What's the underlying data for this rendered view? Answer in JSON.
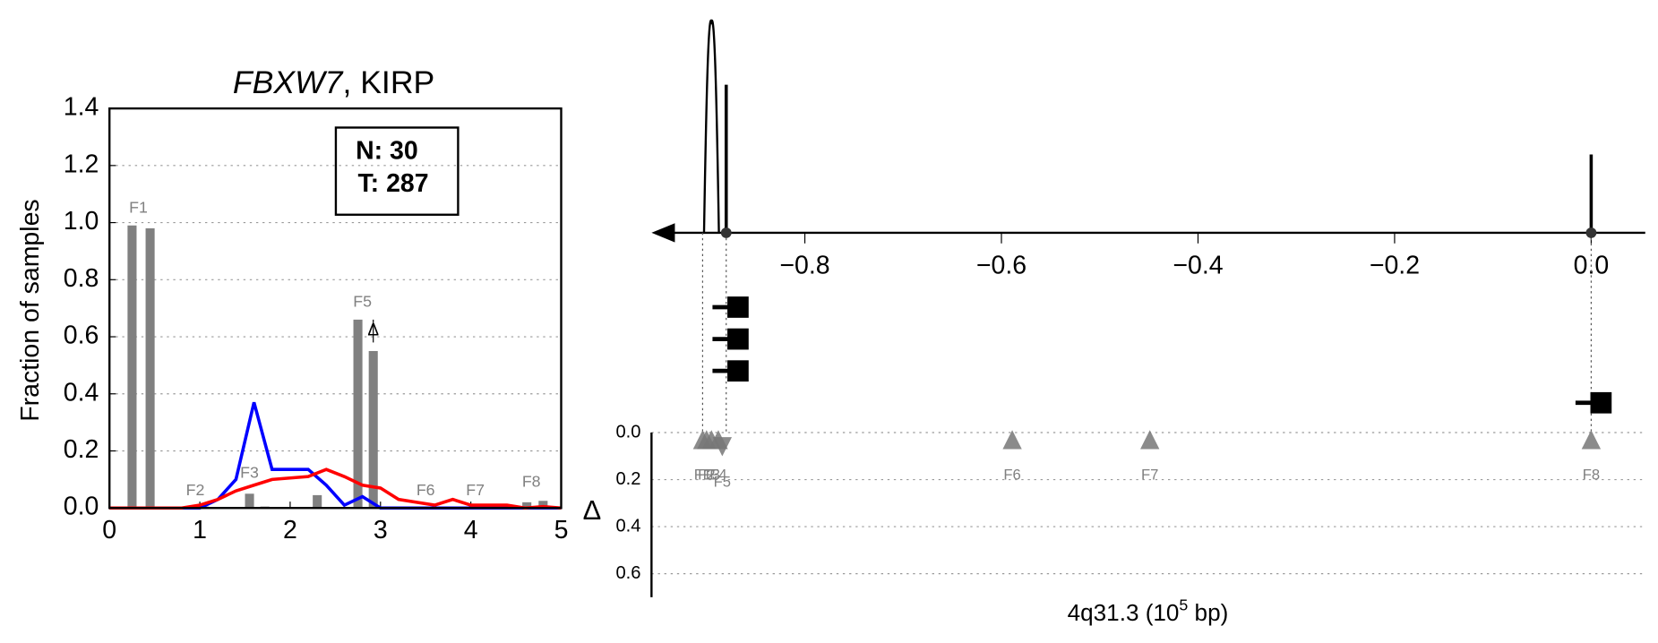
{
  "chart_data": [
    {
      "type": "histogram-lines",
      "title_parts": [
        "FBXW7",
        ", KIRP"
      ],
      "ylabel": "Fraction of samples",
      "xlim": [
        0,
        5
      ],
      "ylim": [
        0,
        1.4
      ],
      "xticks": [
        0,
        1,
        2,
        3,
        4,
        5
      ],
      "yticks": [
        {
          "value": 0,
          "label": "0.0"
        },
        {
          "value": 0.2,
          "label": "0.2"
        },
        {
          "value": 0.4,
          "label": "0.4"
        },
        {
          "value": 0.6,
          "label": "0.6"
        },
        {
          "value": 0.8,
          "label": "0.8"
        },
        {
          "value": 1,
          "label": "1.0"
        },
        {
          "value": 1.2,
          "label": "1.2"
        },
        {
          "value": 1.4,
          "label": "1.4"
        }
      ],
      "grid": true,
      "bars": {
        "color": "#808080",
        "x": [
          0.25,
          0.45,
          1.05,
          1.55,
          1.72,
          2.3,
          2.75,
          2.92,
          3.55,
          4.62,
          4.8
        ],
        "values": [
          0.99,
          0.98,
          0.005,
          0.05,
          0.005,
          0.045,
          0.66,
          0.55,
          0.005,
          0.02,
          0.025
        ]
      },
      "x": [
        0,
        0.2,
        0.4,
        0.6,
        0.8,
        1,
        1.2,
        1.4,
        1.6,
        1.8,
        2,
        2.2,
        2.4,
        2.6,
        2.8,
        3,
        3.2,
        3.4,
        3.6,
        3.8,
        4,
        4.2,
        4.4,
        4.6,
        4.8,
        5
      ],
      "series": [
        {
          "color": "#0000ff",
          "values": [
            0,
            0,
            0,
            0,
            0,
            0,
            0.03,
            0.1,
            0.37,
            0.135,
            0.135,
            0.135,
            0.08,
            0.01,
            0.04,
            0,
            0,
            0,
            0,
            0,
            0,
            0,
            0,
            0,
            0,
            0
          ]
        },
        {
          "color": "#ff0000",
          "values": [
            0,
            0,
            0,
            0,
            0,
            0.01,
            0.03,
            0.06,
            0.08,
            0.1,
            0.105,
            0.11,
            0.135,
            0.11,
            0.08,
            0.07,
            0.03,
            0.02,
            0.01,
            0.03,
            0.01,
            0.01,
            0.01,
            0,
            0.005,
            0
          ]
        }
      ],
      "features": {
        "labels": [
          "F1",
          "F2",
          "F3",
          "F5",
          "F6",
          "F7",
          "F8"
        ],
        "x": [
          0.32,
          0.95,
          1.55,
          2.8,
          3.5,
          4.05,
          4.67
        ],
        "values": [
          1.05,
          0.06,
          0.12,
          0.72,
          0.06,
          0.06,
          0.09
        ]
      },
      "delta_marker": {
        "label": "Δ",
        "x": 2.92,
        "values": [
          0.62
        ],
        "error": [
          0.04
        ]
      },
      "counts": [
        "N: 30",
        "T: 287"
      ]
    },
    {
      "type": "genome-track",
      "xlabel_parts": [
        "4q31.3 (10",
        "5",
        " bp)"
      ],
      "xlim": [
        -0.956,
        0.055
      ],
      "xticks": [
        {
          "value": -0.8,
          "label": "−0.8"
        },
        {
          "value": -0.6,
          "label": "−0.6"
        },
        {
          "value": -0.4,
          "label": "−0.4"
        },
        {
          "value": -0.2,
          "label": "−0.2"
        },
        {
          "value": 0,
          "label": "0.0"
        }
      ],
      "peaks": {
        "x": [
          -0.895,
          -0.88,
          0.0
        ],
        "values": [
          1.0,
          0.7,
          0.37
        ]
      },
      "genes": {
        "x": [
          -0.88,
          0.0
        ]
      },
      "squares": {
        "x": [
          -0.868,
          -0.868,
          -0.868,
          0.01
        ]
      },
      "delta": {
        "ylabel": "Δ",
        "ylim": [
          0,
          0.7
        ],
        "yticks": [
          {
            "value": 0,
            "label": "0.0"
          },
          {
            "value": 0.2,
            "label": "0.2"
          },
          {
            "value": 0.4,
            "label": "0.4"
          },
          {
            "value": 0.6,
            "label": "0.6"
          }
        ],
        "labels": [
          "F1",
          "F2",
          "F3",
          "F4",
          "F5",
          "F6",
          "F7",
          "F8"
        ],
        "x": [
          -0.904,
          -0.9,
          -0.895,
          -0.888,
          -0.884,
          -0.589,
          -0.449,
          0.0
        ],
        "values": [
          0.03,
          0.03,
          0.03,
          0.03,
          0.06,
          0.03,
          0.03,
          0.03
        ]
      }
    }
  ]
}
